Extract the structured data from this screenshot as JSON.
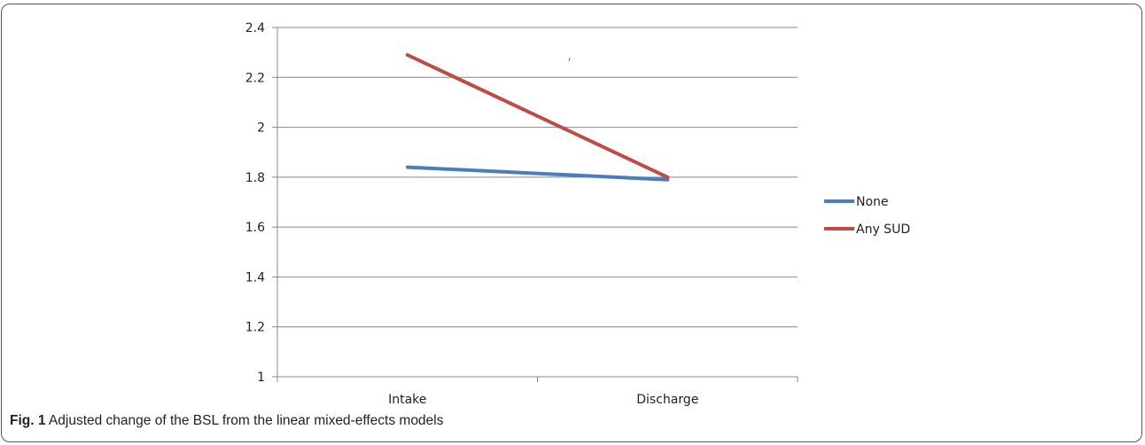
{
  "caption": {
    "label": "Fig. 1",
    "text": " Adjusted change of the BSL from the linear mixed-effects models"
  },
  "colors": {
    "gridline": "#888888",
    "axis": "#888888"
  },
  "chart_data": {
    "type": "line",
    "title": "",
    "xlabel": "",
    "ylabel": "",
    "categories": [
      "Intake",
      "Discharge"
    ],
    "ylim": [
      1,
      2.4
    ],
    "yticks": [
      1,
      1.2,
      1.4,
      1.6,
      1.8,
      2,
      2.2,
      2.4
    ],
    "ytick_labels": [
      "1",
      "1.2",
      "1.4",
      "1.6",
      "1.8",
      "2",
      "2.2",
      "2.4"
    ],
    "grid": true,
    "legend_position": "right",
    "series": [
      {
        "name": "None",
        "values": [
          1.84,
          1.79
        ],
        "color": "#4a7ebb"
      },
      {
        "name": "Any SUD",
        "values": [
          2.29,
          1.8
        ],
        "color": "#be4b48"
      }
    ]
  }
}
